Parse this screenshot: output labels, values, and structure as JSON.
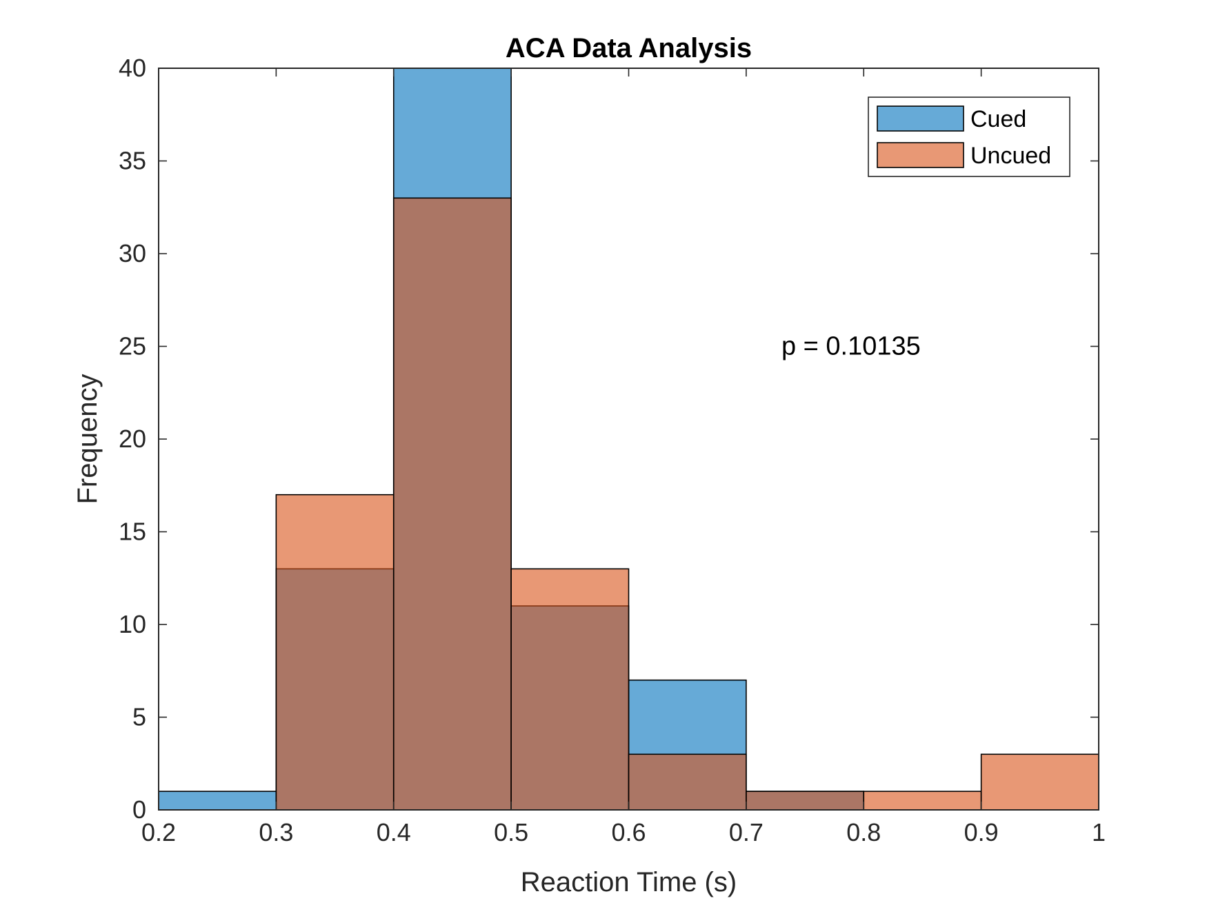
{
  "chart_data": {
    "type": "bar",
    "title": "ACA Data Analysis",
    "xlabel": "Reaction Time (s)",
    "ylabel": "Frequency",
    "xlim": [
      0.2,
      1
    ],
    "ylim": [
      0,
      40
    ],
    "xticks": [
      "0.2",
      "0.3",
      "0.4",
      "0.5",
      "0.6",
      "0.7",
      "0.8",
      "0.9",
      "1"
    ],
    "yticks": [
      "0",
      "5",
      "10",
      "15",
      "20",
      "25",
      "30",
      "35",
      "40"
    ],
    "bin_edges": [
      0.2,
      0.3,
      0.4,
      0.5,
      0.6,
      0.7,
      0.8,
      0.9,
      1.0
    ],
    "series": [
      {
        "name": "Cued",
        "color": "#0072BD",
        "values": [
          1,
          13,
          40,
          11,
          7,
          1,
          0,
          0
        ]
      },
      {
        "name": "Uncued",
        "color": "#D95319",
        "values": [
          0,
          17,
          33,
          13,
          3,
          1,
          1,
          3
        ]
      }
    ],
    "face_alpha": 0.6,
    "legend_position": "top-right",
    "grid": false,
    "annotation": {
      "text": "p = 0.10135",
      "x": 0.73,
      "y": 25
    }
  }
}
